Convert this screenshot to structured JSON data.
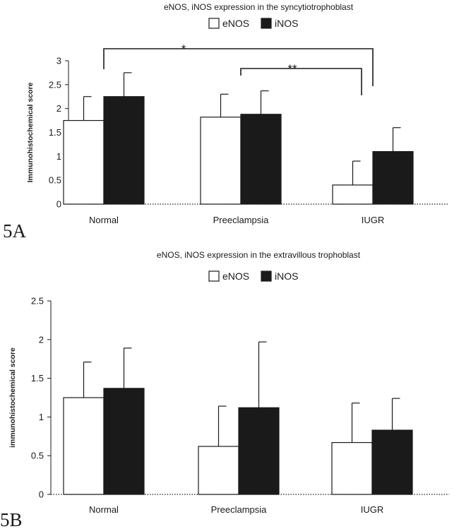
{
  "chart_data": [
    {
      "type": "bar",
      "panel_label": "5A",
      "title": "eNOS, iNOS expression in the syncytiotrophoblast",
      "xlabel": "",
      "ylabel": "Immunohistochemical score",
      "ylim": [
        0,
        3
      ],
      "yticks": [
        "0",
        "0.5",
        "1",
        "1.5",
        "2",
        "2.5",
        "3"
      ],
      "categories": [
        "Normal",
        "Preeclampsia",
        "IUGR"
      ],
      "legend_position": "top-center",
      "series": [
        {
          "name": "eNOS",
          "color": "#ffffff",
          "values": [
            1.75,
            1.82,
            0.4
          ],
          "errors": [
            0.5,
            0.48,
            0.5
          ]
        },
        {
          "name": "iNOS",
          "color": "#1a1a1a",
          "values": [
            2.25,
            1.88,
            1.1
          ],
          "errors": [
            0.5,
            0.49,
            0.5
          ]
        }
      ],
      "annotations": [
        {
          "label": "*",
          "from": "Normal",
          "to": "IUGR"
        },
        {
          "label": "**",
          "from": "Preeclampsia",
          "to": "IUGR"
        }
      ]
    },
    {
      "type": "bar",
      "panel_label": "5B",
      "title": "eNOS, iNOS expression in the extravillous trophoblast",
      "xlabel": "",
      "ylabel": "immunohistochemical score",
      "ylim": [
        0,
        2.5
      ],
      "yticks": [
        "0",
        "0.5",
        "1",
        "1.5",
        "2",
        "2.5"
      ],
      "categories": [
        "Normal",
        "Preeclampsia",
        "IUGR"
      ],
      "legend_position": "top-center",
      "series": [
        {
          "name": "eNOS",
          "color": "#ffffff",
          "values": [
            1.25,
            0.62,
            0.67
          ],
          "errors": [
            0.46,
            0.52,
            0.51
          ]
        },
        {
          "name": "iNOS",
          "color": "#1a1a1a",
          "values": [
            1.37,
            1.12,
            0.83
          ],
          "errors": [
            0.52,
            0.85,
            0.41
          ]
        }
      ],
      "annotations": []
    }
  ]
}
